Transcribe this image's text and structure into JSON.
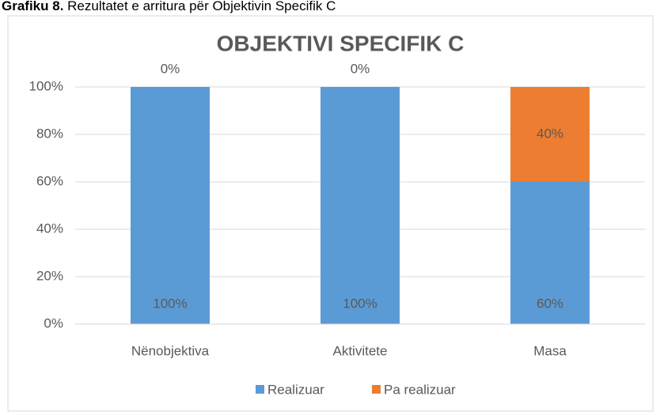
{
  "caption": {
    "label": "Grafiku 8.",
    "text": "Rezultatet e arritura për Objektivin Specifik C"
  },
  "chart_data": {
    "type": "stacked_bar",
    "title": "OBJEKTIVI SPECIFIK C",
    "categories": [
      "Nënobjektiva",
      "Aktivitete",
      "Masa"
    ],
    "series": [
      {
        "name": "Realizuar",
        "color": "#5b9bd5",
        "values": [
          100,
          100,
          60
        ],
        "value_labels": [
          "100%",
          "100%",
          "60%"
        ]
      },
      {
        "name": "Pa realizuar",
        "color": "#ed7d31",
        "values": [
          0,
          0,
          40
        ],
        "value_labels": [
          "0%",
          "0%",
          "40%"
        ]
      }
    ],
    "ylim": [
      0,
      100
    ],
    "yticks": [
      {
        "value": 0,
        "label": "0%"
      },
      {
        "value": 20,
        "label": "20%"
      },
      {
        "value": 40,
        "label": "40%"
      },
      {
        "value": 60,
        "label": "60%"
      },
      {
        "value": 80,
        "label": "80%"
      },
      {
        "value": 100,
        "label": "100%"
      }
    ],
    "grid": true,
    "legend": "bottom"
  }
}
